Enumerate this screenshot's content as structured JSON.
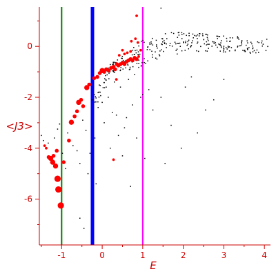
{
  "chart_data": {
    "type": "scatter",
    "xlabel": "E",
    "ylabel": "<J3>",
    "xlim": [
      -1.55,
      4.15
    ],
    "ylim": [
      -7.8,
      1.55
    ],
    "xticks": [
      -1,
      0,
      1,
      2,
      3,
      4
    ],
    "yticks": [
      0,
      -2,
      -4,
      -6
    ],
    "grid": false,
    "colors": {
      "axis": "#cc0000",
      "black_points": "#000000",
      "red_points": "#ff0000",
      "green_line": "#008000",
      "blue_line": "#0000ff",
      "magenta_line": "#ff00ff"
    },
    "vertical_lines": [
      {
        "x": -1.0,
        "color": "#008000"
      },
      {
        "x": -0.24,
        "color": "#0000ff"
      },
      {
        "x": 1.0,
        "color": "#ff00ff"
      }
    ],
    "red_points": [
      {
        "x": -1.02,
        "y": -6.25,
        "w": 4
      },
      {
        "x": -1.08,
        "y": -5.62,
        "w": 4
      },
      {
        "x": -1.1,
        "y": -5.2,
        "w": 4
      },
      {
        "x": -1.15,
        "y": -4.7,
        "w": 3
      },
      {
        "x": -1.22,
        "y": -4.55,
        "w": 3
      },
      {
        "x": -1.27,
        "y": -4.4,
        "w": 3
      },
      {
        "x": -1.32,
        "y": -4.35,
        "w": 2
      },
      {
        "x": -1.2,
        "y": -4.3,
        "w": 2
      },
      {
        "x": -1.12,
        "y": -4.1,
        "w": 2
      },
      {
        "x": -1.38,
        "y": -4.0,
        "w": 1
      },
      {
        "x": -1.42,
        "y": -3.9,
        "w": 1
      },
      {
        "x": -0.95,
        "y": -4.55,
        "w": 2
      },
      {
        "x": -0.82,
        "y": -3.7,
        "w": 2
      },
      {
        "x": -0.76,
        "y": -2.98,
        "w": 3
      },
      {
        "x": -0.68,
        "y": -2.75,
        "w": 2
      },
      {
        "x": -0.62,
        "y": -2.55,
        "w": 2
      },
      {
        "x": -0.58,
        "y": -2.2,
        "w": 3
      },
      {
        "x": -0.52,
        "y": -2.1,
        "w": 2
      },
      {
        "x": -0.47,
        "y": -2.35,
        "w": 2
      },
      {
        "x": -0.38,
        "y": -1.62,
        "w": 3
      },
      {
        "x": -0.32,
        "y": -1.5,
        "w": 2
      },
      {
        "x": -0.2,
        "y": -1.25,
        "w": 2
      },
      {
        "x": -0.12,
        "y": -1.2,
        "w": 2
      },
      {
        "x": -0.06,
        "y": -1.05,
        "w": 2
      },
      {
        "x": 0.0,
        "y": -0.95,
        "w": 3
      },
      {
        "x": 0.05,
        "y": -1.0,
        "w": 2
      },
      {
        "x": 0.1,
        "y": -0.9,
        "w": 2
      },
      {
        "x": 0.16,
        "y": -0.95,
        "w": 2
      },
      {
        "x": 0.22,
        "y": -0.85,
        "w": 2
      },
      {
        "x": 0.28,
        "y": -0.8,
        "w": 2
      },
      {
        "x": 0.32,
        "y": -0.9,
        "w": 2
      },
      {
        "x": 0.36,
        "y": -0.7,
        "w": 2
      },
      {
        "x": 0.4,
        "y": -0.75,
        "w": 2
      },
      {
        "x": 0.45,
        "y": -0.7,
        "w": 2
      },
      {
        "x": 0.5,
        "y": -0.65,
        "w": 2
      },
      {
        "x": 0.55,
        "y": -0.7,
        "w": 2
      },
      {
        "x": 0.6,
        "y": -0.6,
        "w": 2
      },
      {
        "x": 0.65,
        "y": -0.55,
        "w": 2
      },
      {
        "x": 0.7,
        "y": -0.5,
        "w": 2
      },
      {
        "x": 0.75,
        "y": -0.55,
        "w": 2
      },
      {
        "x": 0.8,
        "y": -0.45,
        "w": 2
      },
      {
        "x": 0.85,
        "y": -0.5,
        "w": 2
      },
      {
        "x": 0.9,
        "y": -0.4,
        "w": 1
      },
      {
        "x": 0.55,
        "y": -0.3,
        "w": 1
      },
      {
        "x": 0.62,
        "y": -0.25,
        "w": 1
      },
      {
        "x": 0.7,
        "y": -0.2,
        "w": 1
      },
      {
        "x": 0.5,
        "y": -0.15,
        "w": 1
      },
      {
        "x": 0.42,
        "y": -0.35,
        "w": 1
      },
      {
        "x": 0.72,
        "y": 0.2,
        "w": 1
      },
      {
        "x": 0.82,
        "y": 0.3,
        "w": 1
      },
      {
        "x": 0.88,
        "y": 0.15,
        "w": 1
      },
      {
        "x": 0.95,
        "y": -0.15,
        "w": 1
      },
      {
        "x": 0.85,
        "y": 1.2,
        "w": 1
      },
      {
        "x": 0.35,
        "y": -1.3,
        "w": 1
      },
      {
        "x": 0.28,
        "y": -4.45,
        "w": 1
      }
    ],
    "black_points": [
      {
        "x": -1.5,
        "y": -3.5
      },
      {
        "x": -1.45,
        "y": -3.7
      },
      {
        "x": -1.33,
        "y": -3.8
      },
      {
        "x": -1.18,
        "y": -3.6
      },
      {
        "x": -1.1,
        "y": -3.25
      },
      {
        "x": -1.05,
        "y": -3.05
      },
      {
        "x": -0.98,
        "y": -4.2
      },
      {
        "x": -0.9,
        "y": -4.8
      },
      {
        "x": -0.85,
        "y": -3.4
      },
      {
        "x": -0.72,
        "y": -3.9
      },
      {
        "x": -0.62,
        "y": -4.1
      },
      {
        "x": -0.55,
        "y": -4.6
      },
      {
        "x": -0.48,
        "y": -2.9
      },
      {
        "x": -0.4,
        "y": -3.3
      },
      {
        "x": -0.35,
        "y": -5.0
      },
      {
        "x": -0.3,
        "y": -4.2
      },
      {
        "x": -0.25,
        "y": -2.1
      },
      {
        "x": -0.18,
        "y": -3.6
      },
      {
        "x": -0.15,
        "y": -5.4
      },
      {
        "x": -0.1,
        "y": -2.4
      },
      {
        "x": -0.05,
        "y": -1.8
      },
      {
        "x": 0.0,
        "y": -2.2
      },
      {
        "x": 0.05,
        "y": -3.0
      },
      {
        "x": 0.1,
        "y": -1.6
      },
      {
        "x": 0.15,
        "y": -2.0
      },
      {
        "x": 0.2,
        "y": -4.0
      },
      {
        "x": 0.25,
        "y": -2.6
      },
      {
        "x": 0.3,
        "y": -1.4
      },
      {
        "x": 0.35,
        "y": -2.7
      },
      {
        "x": 0.4,
        "y": -3.5
      },
      {
        "x": 0.45,
        "y": -1.6
      },
      {
        "x": 0.5,
        "y": -4.3
      },
      {
        "x": 0.55,
        "y": -3.2
      },
      {
        "x": 0.6,
        "y": -2.8
      },
      {
        "x": 0.65,
        "y": -1.3
      },
      {
        "x": 0.7,
        "y": -5.5
      },
      {
        "x": 0.75,
        "y": -2.3
      },
      {
        "x": 0.8,
        "y": -1.1
      },
      {
        "x": 0.85,
        "y": -3.6
      },
      {
        "x": 0.95,
        "y": -2.0
      },
      {
        "x": 1.0,
        "y": -1.9
      },
      {
        "x": 1.05,
        "y": -4.4
      },
      {
        "x": 1.15,
        "y": -1.7
      },
      {
        "x": 1.25,
        "y": -2.5
      },
      {
        "x": 1.35,
        "y": -0.5
      },
      {
        "x": 1.45,
        "y": -2.0
      },
      {
        "x": 1.55,
        "y": -4.6
      },
      {
        "x": 1.7,
        "y": -3.1
      },
      {
        "x": 1.85,
        "y": -0.3
      },
      {
        "x": 1.95,
        "y": -4.0
      },
      {
        "x": 2.05,
        "y": -1.6
      },
      {
        "x": 2.2,
        "y": -1.2
      },
      {
        "x": 2.35,
        "y": -3.4
      },
      {
        "x": 2.55,
        "y": -2.5
      },
      {
        "x": 2.75,
        "y": -2.1
      },
      {
        "x": 3.0,
        "y": -1.3
      },
      {
        "x": -0.55,
        "y": -6.75
      },
      {
        "x": -0.45,
        "y": -7.15
      },
      {
        "x": 1.45,
        "y": 1.5
      },
      {
        "x": -0.05,
        "y": -1.1
      }
    ],
    "black_band": {
      "x_start": -0.2,
      "x_end": 4.1,
      "count": 290,
      "dense_from_x": 0.4,
      "level": [
        [
          -0.2,
          -2.2
        ],
        [
          0.2,
          -0.9
        ],
        [
          0.6,
          -0.6
        ],
        [
          1.0,
          -0.3
        ],
        [
          1.5,
          0.1
        ],
        [
          2.0,
          0.2
        ],
        [
          3.0,
          0.1
        ],
        [
          4.0,
          0.0
        ]
      ],
      "spread": [
        [
          -0.2,
          0.3
        ],
        [
          0.4,
          0.25
        ],
        [
          1.0,
          0.55
        ],
        [
          1.5,
          0.45
        ],
        [
          2.5,
          0.35
        ],
        [
          4.0,
          0.3
        ]
      ]
    }
  }
}
